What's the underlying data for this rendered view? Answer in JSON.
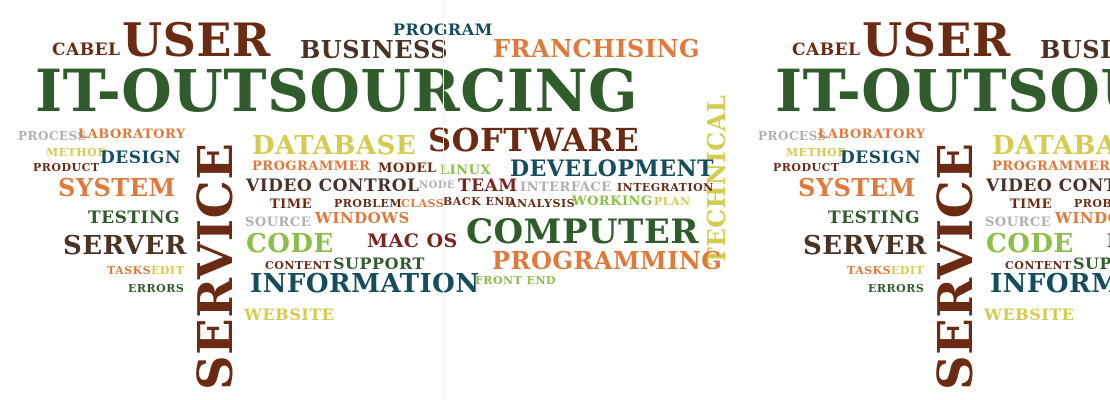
{
  "colors": {
    "brown": "#6b2a12",
    "green": "#2f5c2a",
    "teal": "#134d5e",
    "orange": "#e07a3c",
    "yellow": "#d3cc4f",
    "lightgreen": "#8bbf4a",
    "gray": "#b0b0b0",
    "darkbrown": "#4a3324",
    "maroon": "#7a2420"
  },
  "words": [
    {
      "text": "USER",
      "color": "brown"
    },
    {
      "text": "CABEL",
      "color": "brown"
    },
    {
      "text": "BUSINESS",
      "color": "darkbrown"
    },
    {
      "text": "PROGRAM",
      "color": "teal"
    },
    {
      "text": "FRANCHISING",
      "color": "orange"
    },
    {
      "text": "IT-OUTSOURCING",
      "color": "green"
    },
    {
      "text": "TECHNICAL",
      "color": "yellow"
    },
    {
      "text": "PROCESS",
      "color": "gray"
    },
    {
      "text": "LABORATORY",
      "color": "orange"
    },
    {
      "text": "METHOD",
      "color": "yellow"
    },
    {
      "text": "DESIGN",
      "color": "teal"
    },
    {
      "text": "PRODUCT",
      "color": "brown"
    },
    {
      "text": "SYSTEM",
      "color": "orange"
    },
    {
      "text": "TESTING",
      "color": "green"
    },
    {
      "text": "SERVER",
      "color": "darkbrown"
    },
    {
      "text": "TASKS",
      "color": "orange"
    },
    {
      "text": "EDIT",
      "color": "yellow"
    },
    {
      "text": "ERRORS",
      "color": "green"
    },
    {
      "text": "SERVICE",
      "color": "brown"
    },
    {
      "text": "DATABASE",
      "color": "yellow"
    },
    {
      "text": "SOFTWARE",
      "color": "brown"
    },
    {
      "text": "PROGRAMMER",
      "color": "orange"
    },
    {
      "text": "MODEL",
      "color": "brown"
    },
    {
      "text": "LINUX",
      "color": "lightgreen"
    },
    {
      "text": "DEVELOPMENT",
      "color": "teal"
    },
    {
      "text": "VIDEO CONTROL",
      "color": "darkbrown"
    },
    {
      "text": "NODE",
      "color": "gray"
    },
    {
      "text": "TEAM",
      "color": "maroon"
    },
    {
      "text": "INTERFACE",
      "color": "gray"
    },
    {
      "text": "INTEGRATION",
      "color": "brown"
    },
    {
      "text": "TIME",
      "color": "brown"
    },
    {
      "text": "PROBLEM",
      "color": "brown"
    },
    {
      "text": "CLASS",
      "color": "orange"
    },
    {
      "text": "BACK END",
      "color": "brown"
    },
    {
      "text": "ANALYSIS",
      "color": "brown"
    },
    {
      "text": "WORKING",
      "color": "lightgreen"
    },
    {
      "text": "PLAN",
      "color": "yellow"
    },
    {
      "text": "SOURCE",
      "color": "gray"
    },
    {
      "text": "WINDOWS",
      "color": "orange"
    },
    {
      "text": "CODE",
      "color": "lightgreen"
    },
    {
      "text": "MAC OS",
      "color": "maroon"
    },
    {
      "text": "COMPUTER",
      "color": "green"
    },
    {
      "text": "CONTENT",
      "color": "brown"
    },
    {
      "text": "SUPPORT",
      "color": "green"
    },
    {
      "text": "PROGRAMMING",
      "color": "orange"
    },
    {
      "text": "INFORMATION",
      "color": "teal"
    },
    {
      "text": "FRONT END",
      "color": "lightgreen"
    },
    {
      "text": "WEBSITE",
      "color": "yellow"
    }
  ]
}
